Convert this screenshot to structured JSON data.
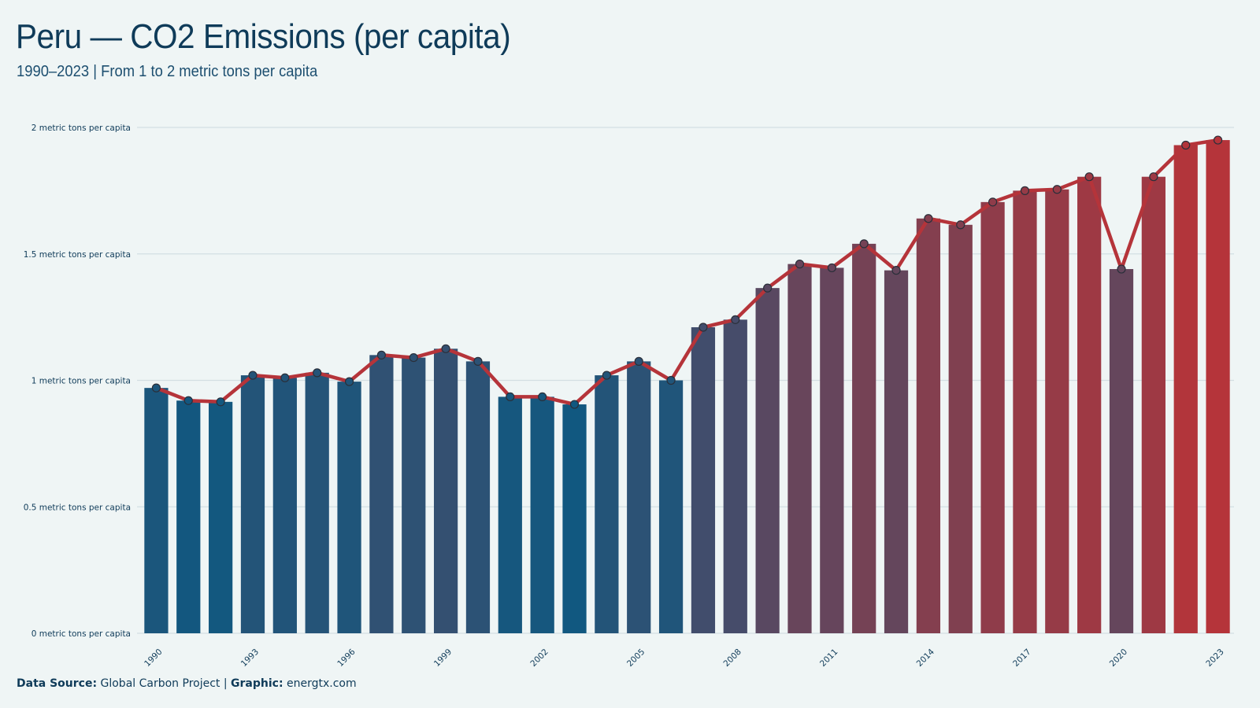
{
  "title": "Peru — CO2 Emissions (per capita)",
  "subtitle": "1990–2023 | From 1 to 2 metric tons per capita",
  "footer": {
    "source_label": "Data Source:",
    "source_value": "Global Carbon Project",
    "separator": "|",
    "graphic_label": "Graphic:",
    "graphic_value": "energtx.com"
  },
  "colors": {
    "background": "#eff5f5",
    "bar_low": "#115880",
    "bar_high": "#b5343a",
    "line": "#b5343a",
    "grid": "#d3dfe3",
    "text": "#0f3b59"
  },
  "chart_data": {
    "type": "bar",
    "title": "Peru — CO2 Emissions (per capita)",
    "subtitle": "1990–2023 | From 1 to 2 metric tons per capita",
    "xlabel": "",
    "ylabel": "",
    "categories": [
      1990,
      1991,
      1992,
      1993,
      1994,
      1995,
      1996,
      1997,
      1998,
      1999,
      2000,
      2001,
      2002,
      2003,
      2004,
      2005,
      2006,
      2007,
      2008,
      2009,
      2010,
      2011,
      2012,
      2013,
      2014,
      2015,
      2016,
      2017,
      2018,
      2019,
      2020,
      2021,
      2022,
      2023
    ],
    "x_tick_labels": [
      "1990",
      "1993",
      "1996",
      "1999",
      "2002",
      "2005",
      "2008",
      "2011",
      "2014",
      "2017",
      "2020",
      "2023"
    ],
    "values": [
      0.97,
      0.92,
      0.915,
      1.02,
      1.01,
      1.03,
      0.995,
      1.1,
      1.09,
      1.125,
      1.075,
      0.935,
      0.935,
      0.905,
      1.02,
      1.075,
      1.0,
      1.21,
      1.24,
      1.365,
      1.46,
      1.445,
      1.54,
      1.435,
      1.64,
      1.615,
      1.705,
      1.75,
      1.755,
      1.805,
      1.44,
      1.805,
      1.93,
      1.95
    ],
    "y_ticks": [
      0,
      0.5,
      1,
      1.5,
      2
    ],
    "y_tick_labels": [
      "0 metric tons per capita",
      "0.5 metric tons per capita",
      "1 metric tons per capita",
      "1.5 metric tons per capita",
      "2 metric tons per capita"
    ],
    "ylim": [
      0,
      2.0
    ],
    "overlay": "line with markers following bar tops",
    "grid": true,
    "legend": "none"
  }
}
